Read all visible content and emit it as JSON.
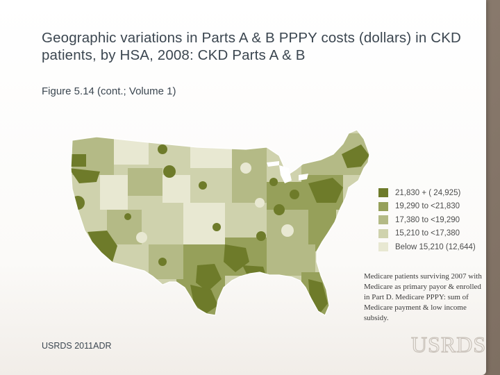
{
  "slide": {
    "title": "Geographic variations in Parts A & B PPPY costs (dollars) in CKD patients, by HSA, 2008: CKD Parts A & B",
    "subtitle": "Figure 5.14 (cont.; Volume 1)",
    "footer": "USRDS 2011ADR",
    "logo": "USRDS"
  },
  "map": {
    "region": "United States (contiguous), by HSA",
    "legend": [
      {
        "label": "21,830 + (   24,925)",
        "color": "#6e7b2a"
      },
      {
        "label": "19,290 to <21,830",
        "color": "#96a05a"
      },
      {
        "label": "17,380 to <19,290",
        "color": "#b4ba86"
      },
      {
        "label": "15,210 to <17,380",
        "color": "#cfd2ad"
      },
      {
        "label": "Below  15,210 (12,644)",
        "color": "#e8e8d2"
      }
    ]
  },
  "note": {
    "text": "Medicare patients surviving 2007 with Medicare as primary payor & enrolled in Part D. Medicare PPPY: sum of Medicare payment & low income subsidy."
  }
}
